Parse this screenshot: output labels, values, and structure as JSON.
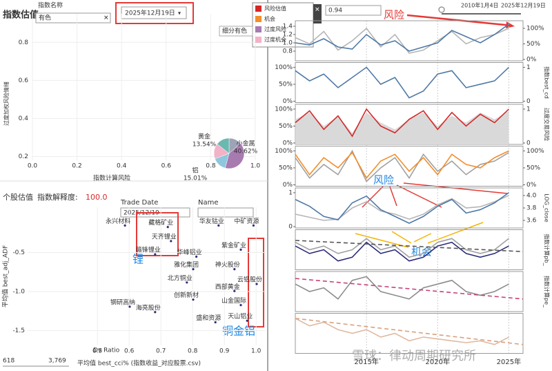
{
  "index_panel": {
    "title": "指数估值",
    "filter_label": "指数名称",
    "filter_value": "有色",
    "date": "2025年12月19日",
    "x_label": "指数计算风险",
    "y_label": "过度加权风险情绪",
    "xlim": [
      0,
      1
    ],
    "ylim": [
      0.18,
      0.95
    ],
    "xticks": [
      {
        "value": 0,
        "label": "0.0"
      },
      0.2,
      0.4,
      0.6,
      0.8,
      {
        "value": 1,
        "label": "1.0"
      }
    ],
    "yticks": [
      0.2,
      0.4,
      0.6,
      0.8
    ],
    "pie": {
      "type": "pie",
      "categories": [
        "黄金",
        "小金属",
        "铝",
        null,
        null
      ],
      "values": [
        13.54,
        40.62,
        15.01,
        16.5,
        14.33
      ],
      "value_labels": [
        "13.54%",
        "40.62%",
        "15.01%",
        null,
        null
      ],
      "colors": [
        "#9fa3b8",
        "#a77bb0",
        "#8fc7dd",
        "#f2b2c8",
        "#6bb8b0"
      ]
    }
  },
  "stock_panel": {
    "title": "个股估值",
    "explain_label": "指数解释度:",
    "explain_value": "100.0",
    "trade_date_label": "Trade Date",
    "trade_date": "2025/12/19",
    "name_label": "Name",
    "y_label": "平均值 best_adj_ADF",
    "x_label": "平均值 best_cci% (指数收益_对应股票.csv)",
    "size_min": "618",
    "size_max": "3,769",
    "size_label": "Dv Ratio",
    "xlim": [
      0.28,
      1.03
    ],
    "ylim": [
      -1.69,
      0.08
    ],
    "xticks": [
      0.5,
      0.6,
      0.7,
      0.8,
      0.9,
      {
        "value": 1,
        "label": "1.0"
      }
    ],
    "yticks": [
      -0.5,
      {
        "value": -1,
        "label": "-1.0"
      },
      -1.5
    ],
    "points": [
      {
        "name": "永兴材料",
        "x": 0.565,
        "y": -0.1
      },
      {
        "name": "藏格矿业",
        "x": 0.7,
        "y": -0.12
      },
      {
        "name": "华友钴业",
        "x": 0.86,
        "y": -0.1
      },
      {
        "name": "中矿资源",
        "x": 0.97,
        "y": -0.1
      },
      {
        "name": "天齐锂业",
        "x": 0.71,
        "y": -0.3
      },
      {
        "name": "赣锋锂业",
        "x": 0.66,
        "y": -0.47
      },
      {
        "name": "华峰铝业",
        "x": 0.79,
        "y": -0.5
      },
      {
        "name": "紫金矿业",
        "x": 0.93,
        "y": -0.41
      },
      {
        "name": "雅化集团",
        "x": 0.78,
        "y": -0.66
      },
      {
        "name": "神火股份",
        "x": 0.91,
        "y": -0.66
      },
      {
        "name": "北方铜业",
        "x": 0.76,
        "y": -0.83
      },
      {
        "name": "云铝股份",
        "x": 0.98,
        "y": -0.85
      },
      {
        "name": "西部黄金",
        "x": 0.91,
        "y": -0.94
      },
      {
        "name": "创新新材",
        "x": 0.78,
        "y": -1.05
      },
      {
        "name": "山金国际",
        "x": 0.93,
        "y": -1.12
      },
      {
        "name": "钢研高纳",
        "x": 0.58,
        "y": -1.14
      },
      {
        "name": "海亮股份",
        "x": 0.66,
        "y": -1.21
      },
      {
        "name": "盛和资源",
        "x": 0.85,
        "y": -1.34
      },
      {
        "name": "天山铝业",
        "x": 0.95,
        "y": -1.32
      }
    ],
    "annotations": [
      "锂",
      "铜金铝"
    ]
  },
  "time_panel": {
    "slider_start": "2010年1月4日",
    "slider_end": "2025年12月19日",
    "filter_label": "细分有色",
    "filter_value": "0.94",
    "legend": [
      {
        "name": "风险估值",
        "color": "#d62728"
      },
      {
        "name": "机会",
        "color": "#f28e2b"
      },
      {
        "name": "过度风险",
        "color": "#a77bb0"
      },
      {
        "name": "过度机会",
        "color": "#f2b2c8"
      }
    ],
    "annotations": {
      "risk_top": "风险",
      "risk_mid": "风险",
      "opportunity": "机会"
    },
    "watermark": "雪球：律动周期研究所",
    "xlim": [
      2010,
      2026
    ],
    "xticks": [
      {
        "value": 2015,
        "label": "2015年"
      },
      {
        "value": 2020,
        "label": "2020年"
      },
      {
        "value": 2025,
        "label": "2025年"
      }
    ],
    "x": [
      2010,
      2011,
      2012,
      2013,
      2014,
      2015,
      2016,
      2017,
      2018,
      2019,
      2020,
      2021,
      2022,
      2023,
      2024,
      2025
    ],
    "panels": [
      {
        "ylim": [
          0.6,
          1.5
        ],
        "yticks": [
          0.8,
          {
            "value": 1,
            "label": "1.0"
          },
          1.2,
          1.4
        ],
        "y2lim": [
          0,
          1.2
        ],
        "y2ticks": [
          {
            "value": 0,
            "label": "0%"
          },
          {
            "value": 0.5,
            "label": "50%"
          },
          {
            "value": 1,
            "label": "100%"
          }
        ],
        "series": [
          {
            "color": "#b5b5b5",
            "axis": "y2",
            "values": [
              0.7,
              0.5,
              0.9,
              0.3,
              0.6,
              1.0,
              0.4,
              0.8,
              0.2,
              0.3,
              0.6,
              0.9,
              0.5,
              0.7,
              0.8,
              1.0
            ]
          },
          {
            "color": "#4e79a7",
            "axis": "y",
            "values": [
              1.0,
              0.95,
              1.1,
              0.9,
              0.85,
              1.2,
              0.95,
              1.05,
              0.8,
              0.9,
              1.0,
              1.3,
              1.15,
              1.0,
              1.2,
              1.45
            ]
          }
        ]
      },
      {
        "ylim": [
          0,
          1.1
        ],
        "yticks": [
          {
            "value": 0,
            "label": "0%"
          },
          {
            "value": 0.5,
            "label": "50%"
          },
          {
            "value": 1,
            "label": "100%"
          }
        ],
        "y2lim": [
          0,
          1.1
        ],
        "y2ticks": [
          0,
          1
        ],
        "y2_label": "指数best_cd",
        "series": [
          {
            "color": "#4e79a7",
            "axis": "y",
            "values": [
              0.9,
              0.6,
              0.8,
              0.4,
              0.7,
              1.0,
              0.5,
              0.7,
              0.1,
              0.3,
              0.8,
              0.9,
              0.4,
              0.5,
              0.6,
              1.0
            ]
          }
        ]
      },
      {
        "ylim": [
          0,
          1.1
        ],
        "yticks": [
          {
            "value": 0,
            "label": "0%"
          },
          {
            "value": 0.5,
            "label": "50%"
          },
          {
            "value": 1,
            "label": "100%"
          }
        ],
        "y2lim": [
          0,
          1.1
        ],
        "y2ticks": [
          0,
          1
        ],
        "y2_label": "过度交易风险",
        "series": [
          {
            "color": "#d9d9d9",
            "axis": "y",
            "area": true,
            "values": [
              0.7,
              0.9,
              0.5,
              0.8,
              0.3,
              0.9,
              0.6,
              0.4,
              0.7,
              0.9,
              0.5,
              0.8,
              0.6,
              0.9,
              0.7,
              0.95
            ]
          },
          {
            "color": "#d62728",
            "axis": "y",
            "values": [
              0.6,
              0.95,
              0.4,
              0.8,
              0.2,
              1.0,
              0.5,
              0.3,
              0.7,
              0.95,
              0.4,
              0.9,
              0.5,
              0.85,
              0.6,
              1.0
            ]
          }
        ]
      },
      {
        "ylim": [
          0,
          1.1
        ],
        "yticks": [
          {
            "value": 0,
            "label": "0%"
          },
          {
            "value": 0.5,
            "label": "50%"
          },
          {
            "value": 1,
            "label": "100%"
          }
        ],
        "y2lim": [
          0,
          1.1
        ],
        "y2ticks": [
          {
            "value": 0,
            "label": "0%"
          },
          {
            "value": 0.5,
            "label": "50%"
          },
          {
            "value": 1,
            "label": "100%"
          }
        ],
        "series": [
          {
            "color": "#a0a0a0",
            "axis": "y",
            "values": [
              0.8,
              0.2,
              0.6,
              0.3,
              1.0,
              0.1,
              0.5,
              0.8,
              0.2,
              0.9,
              0.4,
              0.7,
              0.3,
              0.6,
              0.7,
              0.95
            ]
          },
          {
            "color": "#f28e2b",
            "axis": "y",
            "values": [
              0.9,
              0.3,
              0.8,
              0.5,
              0.95,
              0.2,
              0.7,
              0.9,
              0.4,
              0.8,
              0.3,
              0.9,
              0.6,
              0.5,
              0.8,
              1.0
            ]
          }
        ]
      },
      {
        "ylim": [
          0,
          1.1
        ],
        "yticks": [
          0,
          1
        ],
        "y2lim": [
          3.5,
          4.1
        ],
        "y2ticks": [
          3.6,
          3.8,
          {
            "value": 4,
            "label": "4.0"
          }
        ],
        "y2_label": "LOG_close",
        "series": [
          {
            "color": "#b5b5b5",
            "axis": "y2",
            "values": [
              3.7,
              3.65,
              3.6,
              3.62,
              3.8,
              3.9,
              3.75,
              3.7,
              3.62,
              3.7,
              3.85,
              3.95,
              3.8,
              3.82,
              3.9,
              4.0
            ]
          },
          {
            "color": "#4e79a7",
            "axis": "y",
            "values": [
              0.8,
              0.6,
              0.3,
              0.2,
              0.7,
              0.9,
              0.5,
              0.3,
              0.1,
              0.3,
              0.6,
              0.8,
              0.4,
              0.5,
              0.7,
              1.0
            ]
          }
        ]
      },
      {
        "ylim": [
          0,
          1
        ],
        "y2_label": "指数计算pb_",
        "trend": {
          "color": "#555",
          "values": [
            0.75,
            0.45
          ]
        },
        "series": [
          {
            "color": "#a0a0a0",
            "axis": "y",
            "values": [
              0.7,
              0.5,
              0.6,
              0.4,
              0.5,
              0.8,
              0.5,
              0.6,
              0.3,
              0.4,
              0.7,
              0.8,
              0.5,
              0.4,
              0.5,
              0.8
            ]
          },
          {
            "color": "#2c2c7a",
            "axis": "y",
            "values": [
              0.6,
              0.4,
              0.5,
              0.2,
              0.3,
              0.7,
              0.4,
              0.5,
              0.2,
              0.3,
              0.6,
              0.7,
              0.4,
              0.3,
              0.4,
              0.6
            ]
          }
        ]
      },
      {
        "ylim": [
          0,
          1
        ],
        "y2_label": "指数计算pe_",
        "trend": {
          "color": "#c2447a",
          "values": [
            0.85,
            0.3
          ]
        },
        "series": [
          {
            "color": "#8c8c8c",
            "axis": "y",
            "values": [
              0.7,
              0.5,
              0.6,
              0.3,
              0.8,
              0.9,
              0.5,
              0.4,
              0.3,
              0.6,
              0.7,
              0.8,
              0.5,
              0.4,
              0.5,
              0.7
            ]
          }
        ]
      },
      {
        "ylim": [
          0,
          1
        ],
        "trend": {
          "color": "#d9a07a",
          "values": [
            0.9,
            0.2
          ]
        },
        "series": [
          {
            "color": "#e0b8a0",
            "axis": "y",
            "values": [
              0.9,
              0.7,
              0.8,
              0.6,
              0.5,
              0.6,
              0.4,
              0.5,
              0.3,
              0.4,
              0.35,
              0.3,
              0.25,
              0.3,
              0.2,
              0.4
            ]
          }
        ]
      }
    ]
  }
}
